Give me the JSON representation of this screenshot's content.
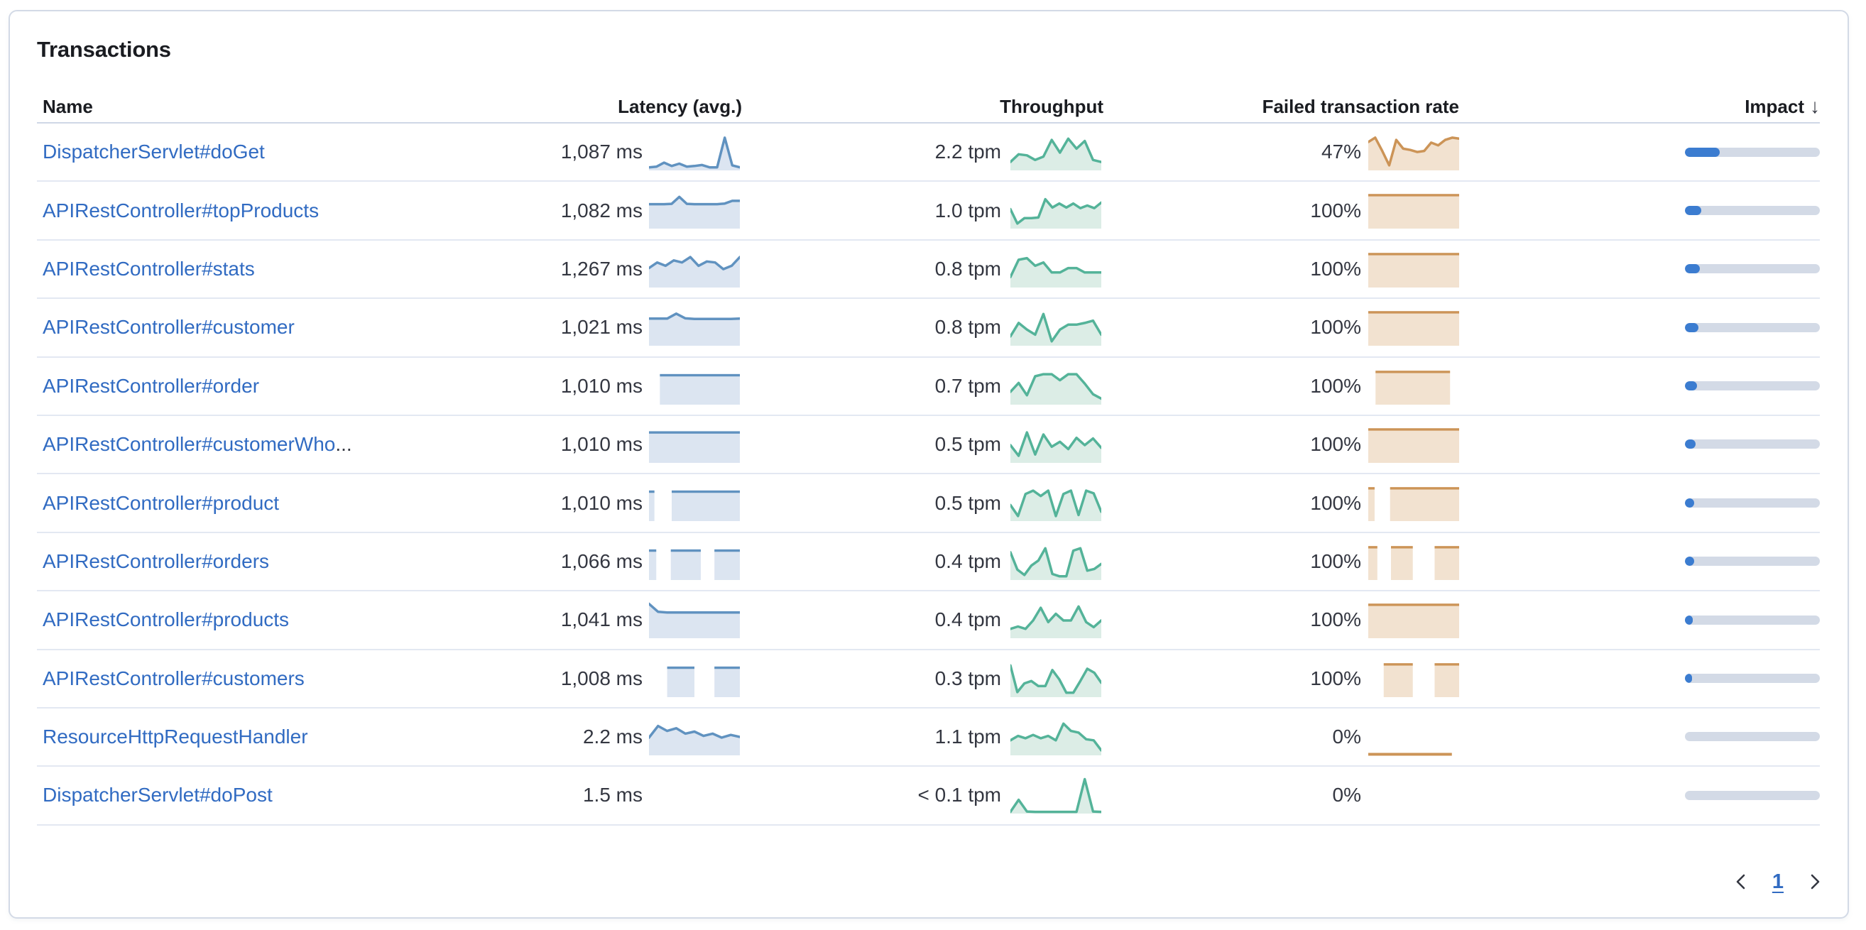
{
  "card": {
    "title": "Transactions"
  },
  "table": {
    "columns": {
      "name": "Name",
      "latency": "Latency (avg.)",
      "throughput": "Throughput",
      "failed": "Failed transaction rate",
      "impact": "Impact"
    },
    "sort_icon": "↓",
    "rows": [
      {
        "name": "DispatcherServlet#doGet",
        "suffix": "",
        "latency": "1,087 ms",
        "latency_spark": {
          "kind": "line",
          "points": [
            0.06,
            0.08,
            0.2,
            0.1,
            0.17,
            0.08,
            0.1,
            0.13,
            0.06,
            0.06,
            0.95,
            0.12,
            0.06
          ]
        },
        "throughput": "2.2 tpm",
        "throughput_spark": {
          "kind": "line",
          "points": [
            0.22,
            0.45,
            0.42,
            0.28,
            0.38,
            0.88,
            0.5,
            0.92,
            0.62,
            0.85,
            0.28,
            0.22
          ]
        },
        "failed_rate": "47%",
        "failed_spark": {
          "kind": "line",
          "points": [
            0.82,
            0.95,
            0.55,
            0.12,
            0.88,
            0.62,
            0.58,
            0.52,
            0.55,
            0.8,
            0.72,
            0.88,
            0.95,
            0.92
          ]
        },
        "impact_pct": 26
      },
      {
        "name": "APIRestController#topProducts",
        "suffix": "",
        "latency": "1,082 ms",
        "latency_spark": {
          "kind": "line",
          "points": [
            0.7,
            0.7,
            0.7,
            0.71,
            0.92,
            0.71,
            0.7,
            0.7,
            0.7,
            0.7,
            0.72,
            0.8,
            0.8
          ]
        },
        "throughput": "1.0 tpm",
        "throughput_spark": {
          "kind": "line",
          "points": [
            0.55,
            0.12,
            0.28,
            0.28,
            0.3,
            0.85,
            0.6,
            0.72,
            0.6,
            0.72,
            0.58,
            0.66,
            0.58,
            0.75
          ]
        },
        "failed_rate": "100%",
        "failed_spark": {
          "kind": "blocks",
          "level": 0.97,
          "blocks": [
            [
              0,
              1
            ]
          ]
        },
        "impact_pct": 12
      },
      {
        "name": "APIRestController#stats",
        "suffix": "",
        "latency": "1,267 ms",
        "latency_spark": {
          "kind": "line",
          "points": [
            0.55,
            0.72,
            0.62,
            0.78,
            0.72,
            0.88,
            0.62,
            0.75,
            0.72,
            0.52,
            0.62,
            0.88
          ]
        },
        "throughput": "0.8 tpm",
        "throughput_spark": {
          "kind": "line",
          "points": [
            0.28,
            0.8,
            0.85,
            0.62,
            0.72,
            0.42,
            0.42,
            0.55,
            0.55,
            0.42,
            0.42,
            0.42
          ]
        },
        "failed_rate": "100%",
        "failed_spark": {
          "kind": "blocks",
          "level": 0.97,
          "blocks": [
            [
              0,
              1
            ]
          ]
        },
        "impact_pct": 11
      },
      {
        "name": "APIRestController#customer",
        "suffix": "",
        "latency": "1,021 ms",
        "latency_spark": {
          "kind": "line",
          "points": [
            0.78,
            0.78,
            0.78,
            0.93,
            0.79,
            0.77,
            0.77,
            0.77,
            0.77,
            0.77,
            0.78
          ]
        },
        "throughput": "0.8 tpm",
        "throughput_spark": {
          "kind": "line",
          "points": [
            0.25,
            0.65,
            0.45,
            0.3,
            0.92,
            0.1,
            0.45,
            0.6,
            0.6,
            0.65,
            0.72,
            0.3
          ]
        },
        "failed_rate": "100%",
        "failed_spark": {
          "kind": "blocks",
          "level": 0.97,
          "blocks": [
            [
              0,
              1
            ]
          ]
        },
        "impact_pct": 10
      },
      {
        "name": "APIRestController#order",
        "suffix": "",
        "latency": "1,010 ms",
        "latency_spark": {
          "kind": "blocks",
          "level": 0.85,
          "blocks": [
            [
              0.12,
              1
            ]
          ]
        },
        "throughput": "0.7 tpm",
        "throughput_spark": {
          "kind": "line",
          "points": [
            0.35,
            0.62,
            0.25,
            0.82,
            0.88,
            0.88,
            0.7,
            0.88,
            0.88,
            0.6,
            0.28,
            0.15
          ]
        },
        "failed_rate": "100%",
        "failed_spark": {
          "kind": "blocks",
          "level": 0.95,
          "blocks": [
            [
              0.08,
              0.9
            ]
          ]
        },
        "impact_pct": 9
      },
      {
        "name": "APIRestController#customerWho",
        "suffix": "...",
        "latency": "1,010 ms",
        "latency_spark": {
          "kind": "blocks",
          "level": 0.88,
          "blocks": [
            [
              0,
              1
            ]
          ]
        },
        "throughput": "0.5 tpm",
        "throughput_spark": {
          "kind": "line",
          "points": [
            0.5,
            0.18,
            0.88,
            0.22,
            0.82,
            0.45,
            0.6,
            0.38,
            0.72,
            0.5,
            0.7,
            0.42
          ]
        },
        "failed_rate": "100%",
        "failed_spark": {
          "kind": "blocks",
          "level": 0.97,
          "blocks": [
            [
              0,
              1
            ]
          ]
        },
        "impact_pct": 8
      },
      {
        "name": "APIRestController#product",
        "suffix": "",
        "latency": "1,010 ms",
        "latency_spark": {
          "kind": "blocks",
          "level": 0.85,
          "blocks": [
            [
              0,
              0.06
            ],
            [
              0.25,
              1
            ]
          ]
        },
        "throughput": "0.5 tpm",
        "throughput_spark": {
          "kind": "line",
          "points": [
            0.45,
            0.12,
            0.78,
            0.88,
            0.72,
            0.88,
            0.12,
            0.78,
            0.88,
            0.15,
            0.88,
            0.8,
            0.25
          ]
        },
        "failed_rate": "100%",
        "failed_spark": {
          "kind": "blocks",
          "level": 0.95,
          "blocks": [
            [
              0,
              0.07
            ],
            [
              0.24,
              1
            ]
          ]
        },
        "impact_pct": 7
      },
      {
        "name": "APIRestController#orders",
        "suffix": "",
        "latency": "1,066 ms",
        "latency_spark": {
          "kind": "blocks",
          "level": 0.85,
          "blocks": [
            [
              0,
              0.08
            ],
            [
              0.24,
              0.57
            ],
            [
              0.72,
              1
            ]
          ]
        },
        "throughput": "0.4 tpm",
        "throughput_spark": {
          "kind": "line",
          "points": [
            0.8,
            0.28,
            0.12,
            0.4,
            0.55,
            0.92,
            0.15,
            0.08,
            0.08,
            0.85,
            0.92,
            0.25,
            0.3,
            0.45
          ]
        },
        "failed_rate": "100%",
        "failed_spark": {
          "kind": "blocks",
          "level": 0.95,
          "blocks": [
            [
              0,
              0.1
            ],
            [
              0.25,
              0.49
            ],
            [
              0.73,
              1
            ]
          ]
        },
        "impact_pct": 7
      },
      {
        "name": "APIRestController#products",
        "suffix": "",
        "latency": "1,041 ms",
        "latency_spark": {
          "kind": "line",
          "points": [
            1.0,
            0.76,
            0.74,
            0.74,
            0.74,
            0.74,
            0.74,
            0.74,
            0.74,
            0.74,
            0.74
          ]
        },
        "throughput": "0.4 tpm",
        "throughput_spark": {
          "kind": "line",
          "points": [
            0.25,
            0.32,
            0.25,
            0.5,
            0.88,
            0.45,
            0.7,
            0.5,
            0.5,
            0.92,
            0.45,
            0.3,
            0.5
          ]
        },
        "failed_rate": "100%",
        "failed_spark": {
          "kind": "blocks",
          "level": 0.97,
          "blocks": [
            [
              0,
              1
            ]
          ]
        },
        "impact_pct": 6
      },
      {
        "name": "APIRestController#customers",
        "suffix": "",
        "latency": "1,008 ms",
        "latency_spark": {
          "kind": "blocks",
          "level": 0.85,
          "blocks": [
            [
              0.2,
              0.5
            ],
            [
              0.72,
              1
            ]
          ]
        },
        "throughput": "0.3 tpm",
        "throughput_spark": {
          "kind": "line",
          "points": [
            0.92,
            0.12,
            0.38,
            0.45,
            0.3,
            0.3,
            0.78,
            0.5,
            0.1,
            0.1,
            0.45,
            0.82,
            0.7,
            0.4
          ]
        },
        "failed_rate": "100%",
        "failed_spark": {
          "kind": "blocks",
          "level": 0.95,
          "blocks": [
            [
              0.17,
              0.49
            ],
            [
              0.73,
              1
            ]
          ]
        },
        "impact_pct": 5
      },
      {
        "name": "ResourceHttpRequestHandler",
        "suffix": "",
        "latency": "2.2 ms",
        "latency_spark": {
          "kind": "line",
          "points": [
            0.5,
            0.85,
            0.7,
            0.78,
            0.62,
            0.68,
            0.55,
            0.62,
            0.5,
            0.58,
            0.52
          ]
        },
        "throughput": "1.1 tpm",
        "throughput_spark": {
          "kind": "line",
          "points": [
            0.42,
            0.55,
            0.48,
            0.58,
            0.48,
            0.55,
            0.42,
            0.92,
            0.7,
            0.65,
            0.45,
            0.42,
            0.12
          ]
        },
        "failed_rate": "0%",
        "failed_spark": {
          "kind": "flatline",
          "span": [
            0,
            0.92
          ]
        },
        "impact_pct": 0
      },
      {
        "name": "DispatcherServlet#doPost",
        "suffix": "",
        "latency": "1.5 ms",
        "latency_spark": {
          "kind": "none"
        },
        "throughput": "< 0.1 tpm",
        "throughput_spark": {
          "kind": "line",
          "points": [
            0.02,
            0.38,
            0.03,
            0.02,
            0.02,
            0.02,
            0.02,
            0.02,
            0.02,
            1.0,
            0.03,
            0.02
          ]
        },
        "failed_rate": "0%",
        "failed_spark": {
          "kind": "none"
        },
        "impact_pct": 0
      }
    ]
  },
  "pagination": {
    "page": "1"
  },
  "colors": {
    "link": "#316bc2",
    "text": "#343741",
    "latency_line": "#6092c0",
    "latency_fill": "#dce5f1",
    "throughput_line": "#54b399",
    "throughput_fill": "#dcede6",
    "failed_line": "#cc9457",
    "failed_fill": "#f2e2d0",
    "impact_fill": "#3b7cd0",
    "impact_track": "#d3dae6"
  }
}
